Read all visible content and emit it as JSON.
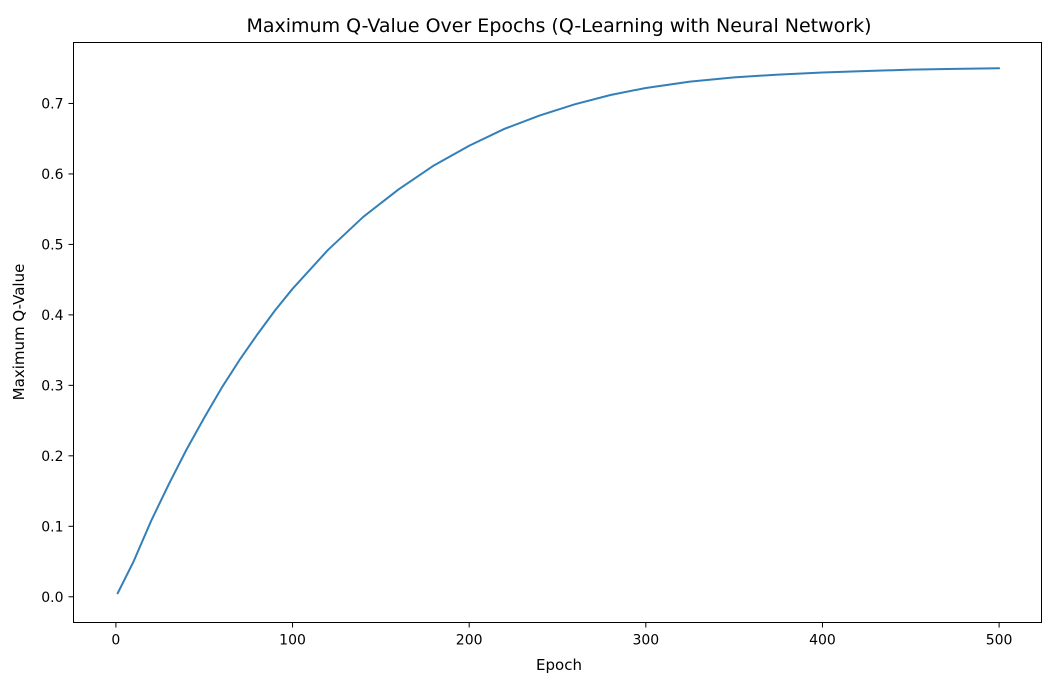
{
  "chart_data": {
    "type": "line",
    "title": "Maximum Q-Value Over Epochs (Q-Learning with Neural Network)",
    "xlabel": "Epoch",
    "ylabel": "Maximum Q-Value",
    "xlim": [
      -24,
      524
    ],
    "ylim": [
      -0.0365,
      0.7865
    ],
    "xticks": [
      0,
      100,
      200,
      300,
      400,
      500
    ],
    "yticks": [
      0.0,
      0.1,
      0.2,
      0.3,
      0.4,
      0.5,
      0.6,
      0.7
    ],
    "xtick_labels": [
      "0",
      "100",
      "200",
      "300",
      "400",
      "500"
    ],
    "ytick_labels": [
      "0.0",
      "0.1",
      "0.2",
      "0.3",
      "0.4",
      "0.5",
      "0.6",
      "0.7"
    ],
    "grid": false,
    "series": [
      {
        "color": "#3380b9",
        "x": [
          1,
          5,
          10,
          20,
          30,
          40,
          50,
          60,
          70,
          80,
          90,
          100,
          120,
          140,
          160,
          180,
          200,
          220,
          240,
          260,
          280,
          300,
          325,
          350,
          375,
          400,
          425,
          450,
          475,
          500
        ],
        "y": [
          0.005,
          0.025,
          0.05,
          0.108,
          0.16,
          0.209,
          0.254,
          0.297,
          0.336,
          0.372,
          0.406,
          0.437,
          0.492,
          0.539,
          0.578,
          0.612,
          0.64,
          0.664,
          0.683,
          0.699,
          0.712,
          0.722,
          0.731,
          0.737,
          0.741,
          0.744,
          0.746,
          0.748,
          0.749,
          0.75
        ]
      }
    ]
  }
}
